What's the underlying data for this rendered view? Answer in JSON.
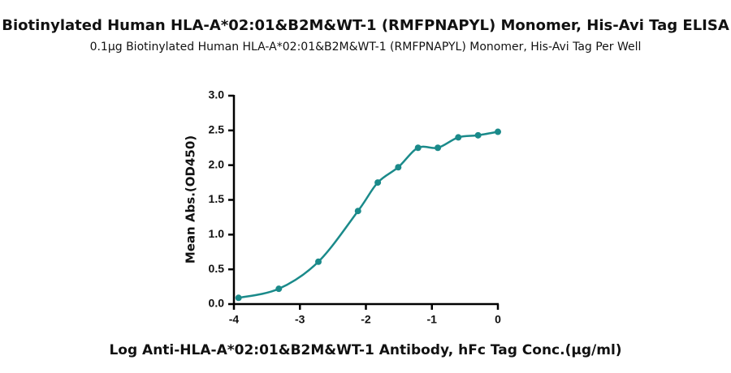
{
  "chart_data": {
    "type": "scatter",
    "title": "Biotinylated Human HLA-A*02:01&B2M&WT-1 (RMFPNAPYL) Monomer, His-Avi Tag ELISA",
    "subtitle": "0.1μg Biotinylated Human HLA-A*02:01&B2M&WT-1 (RMFPNAPYL) Monomer, His-Avi Tag Per Well",
    "x_label": "Log Anti-HLA-A*02:01&B2M&WT-1 Antibody, hFc Tag Conc.(μg/ml)",
    "y_label": "Mean Abs.(OD450)",
    "x": [
      -3.93,
      -3.32,
      -2.72,
      -2.12,
      -1.82,
      -1.51,
      -1.21,
      -0.91,
      -0.6,
      -0.3,
      0.0
    ],
    "series": [
      {
        "color": "#1a8a8a",
        "values": [
          0.09,
          0.22,
          0.61,
          1.34,
          1.75,
          1.97,
          2.25,
          2.25,
          2.4,
          2.43,
          2.48
        ]
      }
    ],
    "xlim": [
      -4,
      0
    ],
    "xticks": [
      -4,
      -3,
      -2,
      -1,
      0
    ],
    "ylim": [
      0,
      3
    ],
    "yticks": [
      {
        "value": 0,
        "label": "0.0"
      },
      0.5,
      {
        "value": 1,
        "label": "1.0"
      },
      1.5,
      {
        "value": 2,
        "label": "2.0"
      },
      2.5,
      {
        "value": 3,
        "label": "3.0"
      }
    ],
    "fit_line": true
  }
}
